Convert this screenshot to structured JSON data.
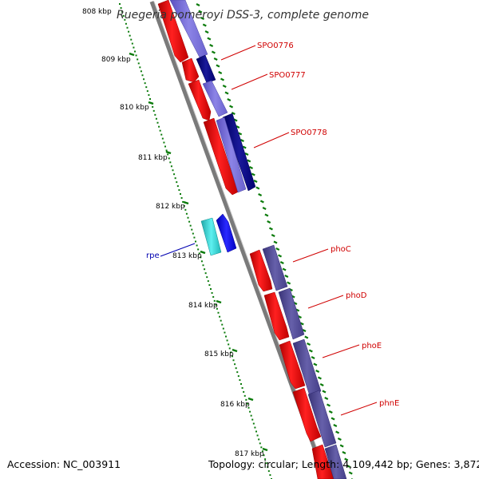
{
  "title": "Ruegeria pomeroyi DSS-3, complete genome",
  "footer": {
    "accession": "Accession: NC_003911",
    "topology": "Topology: circular; Length: 4,109,442 bp; Genes: 3,872"
  },
  "ruler": {
    "labels": [
      "808 kbp",
      "809 kbp",
      "810 kbp",
      "811 kbp",
      "812 kbp",
      "813 kbp",
      "814 kbp",
      "815 kbp",
      "816 kbp",
      "817 kbp"
    ]
  },
  "genes": [
    {
      "name": "SPO0776",
      "color": "#d00000"
    },
    {
      "name": "SPO0777",
      "color": "#d00000"
    },
    {
      "name": "SPO0778",
      "color": "#d00000"
    },
    {
      "name": "rpe",
      "color": "#0000b0"
    },
    {
      "name": "phoC",
      "color": "#d00000"
    },
    {
      "name": "phoD",
      "color": "#d00000"
    },
    {
      "name": "phoE",
      "color": "#d00000"
    },
    {
      "name": "phnE",
      "color": "#d00000"
    }
  ],
  "colors": {
    "backbone": "#8c8c8c",
    "forward_gene": "#ff0000",
    "light_blue": "#7b72d6",
    "navy": "#0a0a80",
    "slate": "#4e4890",
    "cyan": "#2ad0d0",
    "blue": "#0000ee",
    "ruler_green": "#0a7a0a",
    "label_red": "#d00000",
    "label_blue": "#0000b0"
  }
}
